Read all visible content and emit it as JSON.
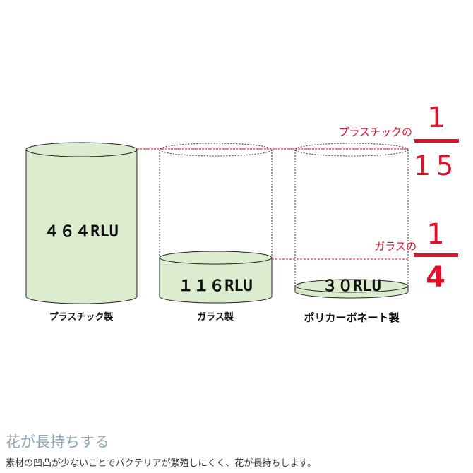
{
  "colors": {
    "fill": "#dbeccf",
    "red": "#e0102a",
    "title": "#8fa6b2"
  },
  "cylinders": [
    {
      "value": "４６４RLU",
      "label": "プラスチック製"
    },
    {
      "value": "１１６RLU",
      "label": "ガラス製"
    },
    {
      "value": "３０RLU",
      "label": "ポリカーボネート製"
    }
  ],
  "ratios": [
    {
      "caption": "プラスチックの",
      "numerator": "1",
      "denominator": "15"
    },
    {
      "caption": "ガラスの",
      "numerator": "1",
      "denominator": "4"
    }
  ],
  "footer": {
    "title": "花が長持ちする",
    "description": "素材の凹凸が少ないことでバクテリアが繁殖しにくく、花が長持ちします。"
  }
}
